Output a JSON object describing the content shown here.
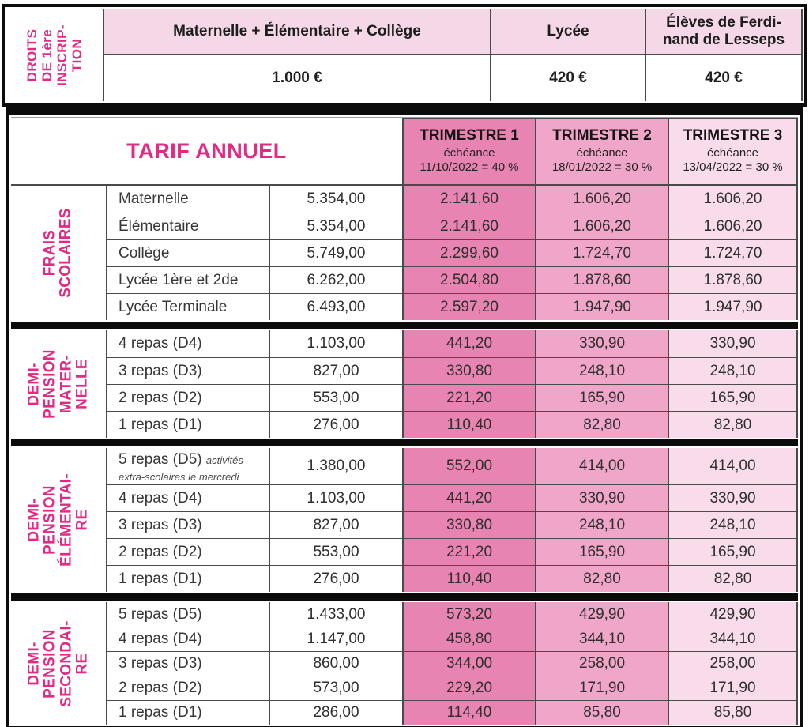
{
  "registration": {
    "side_label": "DROITS\nDE 1ère\nINSCRIP-\nTION",
    "columns": [
      {
        "header": "Maternelle + Élémentaire + Collège",
        "value": "1.000 €"
      },
      {
        "header": "Lycée",
        "value": "420 €"
      },
      {
        "header": "Élèves de Ferdi-\nnand de Lesseps",
        "value": "420 €"
      }
    ]
  },
  "tariff": {
    "title": "TARIF ANNUEL",
    "trimesters": [
      {
        "name": "TRIMESTRE 1",
        "sub": "échéance",
        "due": "11/10/2022 = 40 %"
      },
      {
        "name": "TRIMESTRE 2",
        "sub": "échéance",
        "due": "18/01/2022 = 30 %"
      },
      {
        "name": "TRIMESTRE 3",
        "sub": "échéance",
        "due": "13/04/2022 = 30 %"
      }
    ],
    "sections": [
      {
        "label": "FRAIS\nSCOLAIRES",
        "rows": [
          {
            "item": "Maternelle",
            "annual": "5.354,00",
            "t1": "2.141,60",
            "t2": "1.606,20",
            "t3": "1.606,20"
          },
          {
            "item": "Élémentaire",
            "annual": "5.354,00",
            "t1": "2.141,60",
            "t2": "1.606,20",
            "t3": "1.606,20"
          },
          {
            "item": "Collège",
            "annual": "5.749,00",
            "t1": "2.299,60",
            "t2": "1.724,70",
            "t3": "1.724,70"
          },
          {
            "item": "Lycée 1ère et 2de",
            "annual": "6.262,00",
            "t1": "2.504,80",
            "t2": "1.878,60",
            "t3": "1.878,60"
          },
          {
            "item": "Lycée Terminale",
            "annual": "6.493,00",
            "t1": "2.597,20",
            "t2": "1.947,90",
            "t3": "1.947,90"
          }
        ]
      },
      {
        "label": "DEMI-\nPENSION\nMATER-\nNELLE",
        "rows": [
          {
            "item": "4 repas (D4)",
            "annual": "1.103,00",
            "t1": "441,20",
            "t2": "330,90",
            "t3": "330,90"
          },
          {
            "item": "3 repas (D3)",
            "annual": "827,00",
            "t1": "330,80",
            "t2": "248,10",
            "t3": "248,10"
          },
          {
            "item": "2 repas (D2)",
            "annual": "553,00",
            "t1": "221,20",
            "t2": "165,90",
            "t3": "165,90"
          },
          {
            "item": "1 repas (D1)",
            "annual": "276,00",
            "t1": "110,40",
            "t2": "82,80",
            "t3": "82,80"
          }
        ]
      },
      {
        "label": "DEMI-\nPENSION\nÉLÉMENTAI-\nRE",
        "rows": [
          {
            "item": "5 repas (D5)",
            "note": "activités extra-scolaires le mercredi",
            "annual": "1.380,00",
            "t1": "552,00",
            "t2": "414,00",
            "t3": "414,00"
          },
          {
            "item": "4 repas (D4)",
            "annual": "1.103,00",
            "t1": "441,20",
            "t2": "330,90",
            "t3": "330,90"
          },
          {
            "item": "3 repas (D3)",
            "annual": "827,00",
            "t1": "330,80",
            "t2": "248,10",
            "t3": "248,10"
          },
          {
            "item": "2 repas (D2)",
            "annual": "553,00",
            "t1": "221,20",
            "t2": "165,90",
            "t3": "165,90"
          },
          {
            "item": "1 repas (D1)",
            "annual": "276,00",
            "t1": "110,40",
            "t2": "82,80",
            "t3": "82,80"
          }
        ]
      },
      {
        "label": "DEMI-\nPENSION\nSECONDAI-\nRE",
        "rows": [
          {
            "item": "5 repas (D5)",
            "annual": "1.433,00",
            "t1": "573,20",
            "t2": "429,90",
            "t3": "429,90"
          },
          {
            "item": "4 repas (D4)",
            "annual": "1.147,00",
            "t1": "458,80",
            "t2": "344,10",
            "t3": "344,10"
          },
          {
            "item": "3 repas (D3)",
            "annual": "860,00",
            "t1": "344,00",
            "t2": "258,00",
            "t3": "258,00"
          },
          {
            "item": "2 repas (D2)",
            "annual": "573,00",
            "t1": "229,20",
            "t2": "171,90",
            "t3": "171,90"
          },
          {
            "item": "1 repas (D1)",
            "annual": "286,00",
            "t1": "114,40",
            "t2": "85,80",
            "t3": "85,80"
          }
        ]
      }
    ]
  },
  "colors": {
    "accent_pink_text": "#e22a84",
    "registration_header_bg": "#f5d8e8",
    "trimester1_bg": "#e884b1",
    "trimester2_bg": "#efa6c9",
    "trimester3_bg": "#f8dcec",
    "grid_line": "#4a4a4a",
    "outer_border": "#0b0b0b"
  }
}
